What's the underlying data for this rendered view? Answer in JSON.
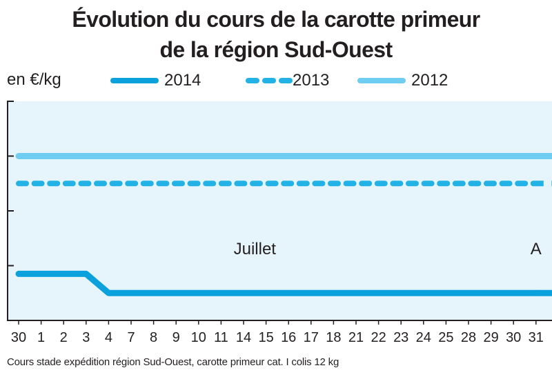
{
  "title_line1": "Évolution du cours de la carotte primeur",
  "title_line2": "de la région Sud-Ouest",
  "footnote": "Cours stade expédition région Sud-Ouest, carotte primeur cat. I colis 12 kg",
  "colors": {
    "plot_background": "#e6f4fb",
    "axis": "#231f20",
    "series_2014": "#0aa1dc",
    "series_2013": "#22b2e6",
    "series_2012": "#6fcdf1"
  },
  "chart_data": {
    "type": "line",
    "title": "Évolution du cours de la carotte primeur de la région Sud-Ouest",
    "ylabel": "en €/kg",
    "xlabel": "",
    "categories": [
      "30",
      "1",
      "2",
      "3",
      "4",
      "7",
      "8",
      "9",
      "10",
      "11",
      "14",
      "15",
      "16",
      "17",
      "18",
      "21",
      "22",
      "23",
      "24",
      "25",
      "28",
      "29",
      "30",
      "31"
    ],
    "month_labels": [
      {
        "text": "Juillet",
        "x_index": 10.5
      },
      {
        "text": "A",
        "x_index": 23
      }
    ],
    "y_ticks": 4,
    "ylim": [
      0,
      4
    ],
    "legend_position": "top",
    "grid": false,
    "series": [
      {
        "name": "2014",
        "style": "solid",
        "values": [
          0.85,
          0.85,
          0.85,
          0.85,
          0.5,
          0.5,
          0.5,
          0.5,
          0.5,
          0.5,
          0.5,
          0.5,
          0.5,
          0.5,
          0.5,
          0.5,
          0.5,
          0.5,
          0.5,
          0.5,
          0.5,
          0.5,
          0.5,
          0.5
        ]
      },
      {
        "name": "2013",
        "style": "dashed",
        "values": [
          2.5,
          2.5,
          2.5,
          2.5,
          2.5,
          2.5,
          2.5,
          2.5,
          2.5,
          2.5,
          2.5,
          2.5,
          2.5,
          2.5,
          2.5,
          2.5,
          2.5,
          2.5,
          2.5,
          2.5,
          2.5,
          2.5,
          2.5,
          2.5
        ]
      },
      {
        "name": "2012",
        "style": "solid-light",
        "values": [
          3.0,
          3.0,
          3.0,
          3.0,
          3.0,
          3.0,
          3.0,
          3.0,
          3.0,
          3.0,
          3.0,
          3.0,
          3.0,
          3.0,
          3.0,
          3.0,
          3.0,
          3.0,
          3.0,
          3.0,
          3.0,
          3.0,
          3.0,
          3.0
        ]
      }
    ]
  }
}
